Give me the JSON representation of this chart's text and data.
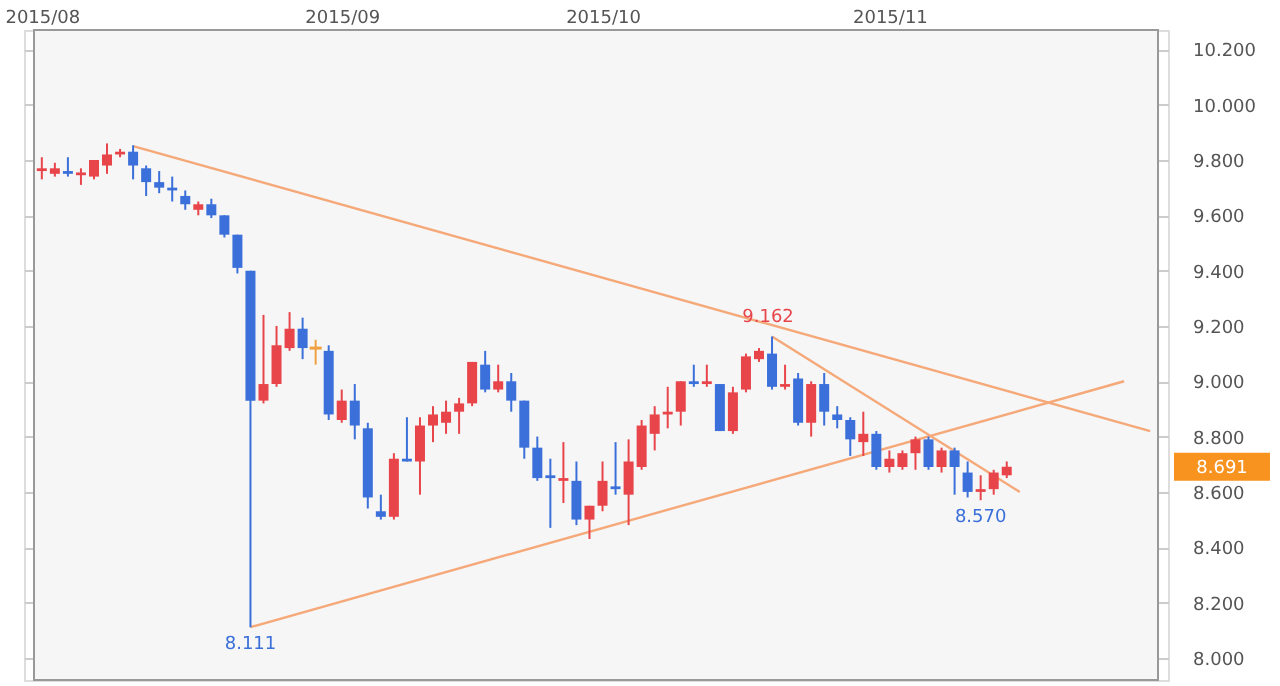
{
  "chart_data": {
    "type": "candlestick",
    "categories": [
      "2015/08",
      null,
      null,
      null,
      null,
      null,
      null,
      null,
      null,
      null,
      null,
      null,
      null,
      null,
      null,
      null,
      null,
      null,
      null,
      null,
      null,
      null,
      null,
      "2015/09",
      null,
      null,
      null,
      null,
      null,
      null,
      null,
      null,
      null,
      null,
      null,
      null,
      null,
      null,
      null,
      null,
      null,
      null,
      null,
      "2015/10",
      null,
      null,
      null,
      null,
      null,
      null,
      null,
      null,
      null,
      null,
      null,
      null,
      null,
      null,
      null,
      null,
      null,
      null,
      null,
      null,
      null,
      "2015/11",
      null,
      null,
      null,
      null,
      null,
      null,
      null,
      null,
      null,
      null,
      null,
      null,
      null,
      null,
      null,
      null,
      null,
      null,
      null,
      null
    ],
    "ohlc": [
      [
        9.76,
        9.81,
        9.73,
        9.77
      ],
      [
        9.75,
        9.79,
        9.74,
        9.77
      ],
      [
        9.76,
        9.81,
        9.74,
        9.75
      ],
      [
        9.745,
        9.77,
        9.71,
        9.755
      ],
      [
        9.74,
        9.8,
        9.73,
        9.8
      ],
      [
        9.78,
        9.86,
        9.75,
        9.82
      ],
      [
        9.82,
        9.84,
        9.81,
        9.83
      ],
      [
        9.83,
        9.853,
        9.73,
        9.78
      ],
      [
        9.77,
        9.78,
        9.67,
        9.72
      ],
      [
        9.72,
        9.76,
        9.68,
        9.7
      ],
      [
        9.7,
        9.74,
        9.65,
        9.69
      ],
      [
        9.67,
        9.69,
        9.62,
        9.64
      ],
      [
        9.62,
        9.65,
        9.6,
        9.64
      ],
      [
        9.64,
        9.66,
        9.59,
        9.6
      ],
      [
        9.6,
        9.6,
        9.52,
        9.53
      ],
      [
        9.53,
        9.53,
        9.39,
        9.41
      ],
      [
        9.4,
        9.4,
        8.111,
        8.93
      ],
      [
        8.93,
        9.24,
        8.92,
        8.99
      ],
      [
        8.99,
        9.2,
        8.98,
        9.13
      ],
      [
        9.12,
        9.25,
        9.11,
        9.19
      ],
      [
        9.19,
        9.23,
        9.08,
        9.12
      ],
      [
        9.12,
        9.15,
        9.06,
        9.12
      ],
      [
        9.11,
        9.13,
        8.86,
        8.88
      ],
      [
        8.86,
        8.97,
        8.85,
        8.93
      ],
      [
        8.93,
        8.99,
        8.79,
        8.84
      ],
      [
        8.83,
        8.85,
        8.54,
        8.58
      ],
      [
        8.53,
        8.59,
        8.5,
        8.51
      ],
      [
        8.51,
        8.74,
        8.5,
        8.72
      ],
      [
        8.72,
        8.87,
        8.71,
        8.71
      ],
      [
        8.71,
        8.87,
        8.59,
        8.84
      ],
      [
        8.84,
        8.91,
        8.78,
        8.88
      ],
      [
        8.85,
        8.93,
        8.81,
        8.89
      ],
      [
        8.89,
        8.94,
        8.81,
        8.92
      ],
      [
        8.92,
        9.07,
        8.91,
        9.07
      ],
      [
        9.06,
        9.11,
        8.96,
        8.97
      ],
      [
        8.97,
        9.06,
        8.96,
        9.0
      ],
      [
        9.0,
        9.03,
        8.89,
        8.93
      ],
      [
        8.93,
        8.93,
        8.72,
        8.76
      ],
      [
        8.76,
        8.8,
        8.64,
        8.65
      ],
      [
        8.66,
        8.72,
        8.47,
        8.65
      ],
      [
        8.64,
        8.78,
        8.56,
        8.65
      ],
      [
        8.64,
        8.71,
        8.48,
        8.5
      ],
      [
        8.5,
        8.55,
        8.43,
        8.55
      ],
      [
        8.55,
        8.71,
        8.53,
        8.64
      ],
      [
        8.62,
        8.78,
        8.59,
        8.61
      ],
      [
        8.59,
        8.79,
        8.48,
        8.71
      ],
      [
        8.69,
        8.86,
        8.68,
        8.84
      ],
      [
        8.81,
        8.91,
        8.75,
        8.88
      ],
      [
        8.88,
        8.98,
        8.83,
        8.89
      ],
      [
        8.89,
        9.0,
        8.84,
        9.0
      ],
      [
        9.0,
        9.06,
        8.98,
        8.99
      ],
      [
        8.99,
        9.06,
        8.98,
        9.0
      ],
      [
        8.99,
        8.99,
        8.82,
        8.82
      ],
      [
        8.82,
        8.98,
        8.81,
        8.96
      ],
      [
        8.97,
        9.1,
        8.96,
        9.09
      ],
      [
        9.08,
        9.12,
        9.07,
        9.11
      ],
      [
        9.1,
        9.162,
        8.97,
        8.98
      ],
      [
        8.98,
        9.06,
        8.97,
        8.99
      ],
      [
        9.01,
        9.03,
        8.84,
        8.85
      ],
      [
        8.85,
        9.0,
        8.8,
        8.99
      ],
      [
        8.99,
        9.03,
        8.84,
        8.89
      ],
      [
        8.88,
        8.91,
        8.83,
        8.86
      ],
      [
        8.86,
        8.87,
        8.73,
        8.79
      ],
      [
        8.78,
        8.89,
        8.73,
        8.81
      ],
      [
        8.81,
        8.82,
        8.68,
        8.69
      ],
      [
        8.69,
        8.75,
        8.67,
        8.72
      ],
      [
        8.69,
        8.75,
        8.68,
        8.74
      ],
      [
        8.74,
        8.8,
        8.68,
        8.79
      ],
      [
        8.79,
        8.8,
        8.68,
        8.69
      ],
      [
        8.69,
        8.76,
        8.67,
        8.75
      ],
      [
        8.75,
        8.76,
        8.59,
        8.69
      ],
      [
        8.67,
        8.71,
        8.58,
        8.6
      ],
      [
        8.6,
        8.66,
        8.57,
        8.61
      ],
      [
        8.61,
        8.68,
        8.59,
        8.67
      ],
      [
        8.66,
        8.71,
        8.65,
        8.691
      ],
      null,
      null,
      null,
      null,
      null,
      null,
      null,
      null,
      null,
      null,
      null
    ],
    "colors": [
      "#e8454b",
      "#e8454b",
      "#3b6fd9",
      "#e8454b",
      "#e8454b",
      "#e8454b",
      "#e8454b",
      "#3b6fd9",
      "#3b6fd9",
      "#3b6fd9",
      "#3b6fd9",
      "#3b6fd9",
      "#e8454b",
      "#3b6fd9",
      "#3b6fd9",
      "#3b6fd9",
      "#3b6fd9",
      "#e8454b",
      "#e8454b",
      "#e8454b",
      "#3b6fd9",
      "#f0a040",
      "#3b6fd9",
      "#e8454b",
      "#3b6fd9",
      "#3b6fd9",
      "#3b6fd9",
      "#e8454b",
      "#3b6fd9",
      "#e8454b",
      "#e8454b",
      "#e8454b",
      "#e8454b",
      "#e8454b",
      "#3b6fd9",
      "#e8454b",
      "#3b6fd9",
      "#3b6fd9",
      "#3b6fd9",
      "#3b6fd9",
      "#e8454b",
      "#3b6fd9",
      "#e8454b",
      "#e8454b",
      "#3b6fd9",
      "#e8454b",
      "#e8454b",
      "#e8454b",
      "#e8454b",
      "#e8454b",
      "#3b6fd9",
      "#e8454b",
      "#3b6fd9",
      "#e8454b",
      "#e8454b",
      "#e8454b",
      "#3b6fd9",
      "#e8454b",
      "#3b6fd9",
      "#e8454b",
      "#3b6fd9",
      "#3b6fd9",
      "#3b6fd9",
      "#e8454b",
      "#3b6fd9",
      "#e8454b",
      "#e8454b",
      "#e8454b",
      "#3b6fd9",
      "#e8454b",
      "#3b6fd9",
      "#3b6fd9",
      "#e8454b",
      "#e8454b",
      "#e8454b",
      null,
      null,
      null,
      null,
      null,
      null,
      null,
      null,
      null,
      null,
      null
    ],
    "series": [
      {
        "type": "line",
        "color": "#f5a878",
        "values": [
          null,
          null,
          null,
          null,
          null,
          null,
          null,
          9.85,
          null,
          null,
          null,
          null,
          null,
          null,
          null,
          null,
          null,
          null,
          null,
          null,
          null,
          null,
          null,
          null,
          null,
          null,
          null,
          null,
          null,
          null,
          null,
          null,
          null,
          null,
          null,
          null,
          null,
          null,
          null,
          null,
          null,
          null,
          null,
          null,
          null,
          null,
          null,
          null,
          null,
          null,
          null,
          null,
          null,
          null,
          null,
          null,
          null,
          null,
          null,
          null,
          null,
          null,
          null,
          null,
          null,
          null,
          null,
          null,
          null,
          null,
          null,
          null,
          null,
          null,
          null,
          null,
          null,
          null,
          null,
          null,
          null,
          null,
          null,
          null,
          null,
          8.82
        ]
      },
      {
        "type": "line",
        "color": "#f5a878",
        "values": [
          null,
          null,
          null,
          null,
          null,
          null,
          null,
          null,
          null,
          null,
          null,
          null,
          null,
          null,
          null,
          null,
          8.111,
          null,
          null,
          null,
          null,
          null,
          null,
          null,
          null,
          null,
          null,
          null,
          null,
          null,
          null,
          null,
          null,
          null,
          null,
          null,
          null,
          null,
          null,
          null,
          null,
          null,
          null,
          null,
          null,
          null,
          null,
          null,
          null,
          null,
          null,
          null,
          null,
          null,
          null,
          null,
          null,
          null,
          null,
          null,
          null,
          null,
          null,
          null,
          null,
          null,
          null,
          null,
          null,
          null,
          null,
          null,
          null,
          null,
          null,
          null,
          null,
          null,
          null,
          null,
          null,
          null,
          null,
          9.0,
          null,
          null
        ]
      },
      {
        "type": "line",
        "color": "#f5a878",
        "values": [
          null,
          null,
          null,
          null,
          null,
          null,
          null,
          null,
          null,
          null,
          null,
          null,
          null,
          null,
          null,
          null,
          null,
          null,
          null,
          null,
          null,
          null,
          null,
          null,
          null,
          null,
          null,
          null,
          null,
          null,
          null,
          null,
          null,
          null,
          null,
          null,
          null,
          null,
          null,
          null,
          null,
          null,
          null,
          null,
          null,
          null,
          null,
          null,
          null,
          null,
          null,
          null,
          null,
          null,
          null,
          null,
          9.162,
          null,
          null,
          null,
          null,
          null,
          null,
          null,
          null,
          null,
          null,
          null,
          null,
          null,
          null,
          null,
          null,
          null,
          null,
          8.6,
          null,
          null,
          null,
          null,
          null,
          null,
          null,
          null,
          null,
          null
        ]
      }
    ],
    "annotations": [
      {
        "text": "9.162",
        "y": 9.162
      },
      {
        "text": "8.570",
        "y": 8.57
      },
      {
        "text": "8.111",
        "y": 8.111
      },
      "8.691"
    ],
    "ylim": [
      7.92,
      10.27
    ],
    "yticks": [
      {
        "value": 8.0,
        "label": "8.000"
      },
      {
        "value": 8.2,
        "label": "8.200"
      },
      {
        "value": 8.4,
        "label": "8.400"
      },
      {
        "value": 8.6,
        "label": "8.600"
      },
      {
        "value": 8.8,
        "label": "8.800"
      },
      {
        "value": 9.0,
        "label": "9.000"
      },
      {
        "value": 9.2,
        "label": "9.200"
      },
      {
        "value": 9.4,
        "label": "9.400"
      },
      {
        "value": 9.6,
        "label": "9.600"
      },
      {
        "value": 9.8,
        "label": "9.800"
      },
      {
        "value": 10.0,
        "label": "10.000"
      },
      {
        "value": 10.2,
        "label": "10.200"
      }
    ],
    "grid": true
  }
}
